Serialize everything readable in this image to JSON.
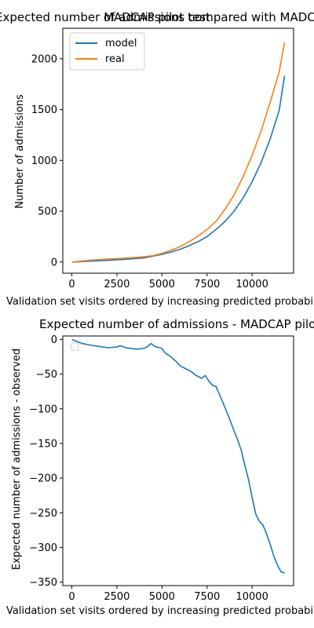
{
  "colors": {
    "model": "#1f77b4",
    "real": "#ff7f0e",
    "diff": "#1f77b4"
  },
  "chart_data": [
    {
      "type": "line",
      "title_overlap": "MADCAP pilot test",
      "title": "Expected number of admissions compared with MADCAP pilot test",
      "xlabel": "Validation set visits ordered by increasing predicted probability",
      "ylabel": "Number of admissions",
      "xlim": [
        -500,
        12300
      ],
      "ylim": [
        -110,
        2300
      ],
      "xticks": [
        0,
        2500,
        5000,
        7500,
        10000
      ],
      "yticks": [
        0,
        500,
        1000,
        1500,
        2000
      ],
      "legend": "upper-left",
      "series": [
        {
          "name": "model",
          "color": "#1f77b4",
          "x": [
            0,
            1000,
            2000,
            3000,
            4000,
            5000,
            5500,
            6000,
            6500,
            7000,
            7500,
            8000,
            8500,
            9000,
            9500,
            10000,
            10500,
            11000,
            11500,
            11800
          ],
          "y": [
            0,
            8,
            17,
            27,
            40,
            75,
            98,
            125,
            160,
            200,
            250,
            320,
            400,
            500,
            630,
            790,
            980,
            1210,
            1490,
            1830
          ]
        },
        {
          "name": "real",
          "color": "#ff7f0e",
          "x": [
            0,
            1000,
            2000,
            3000,
            4000,
            4500,
            5000,
            5500,
            6000,
            6500,
            7000,
            7500,
            8000,
            8500,
            9000,
            9500,
            10000,
            10500,
            11000,
            11500,
            11800
          ],
          "y": [
            0,
            18,
            28,
            38,
            52,
            62,
            85,
            115,
            150,
            200,
            255,
            320,
            400,
            520,
            660,
            840,
            1050,
            1290,
            1570,
            1870,
            2160
          ]
        }
      ]
    },
    {
      "type": "line",
      "title": "Expected number of admissions - MADCAP pilot test",
      "xlabel": "Validation set visits ordered by increasing predicted probability",
      "ylabel": "Expected number of admissions - observed",
      "xlim": [
        -500,
        12300
      ],
      "ylim": [
        -355,
        5
      ],
      "xticks": [
        0,
        2500,
        5000,
        7500,
        10000
      ],
      "yticks": [
        0,
        -50,
        -100,
        -150,
        -200,
        -250,
        -300,
        -350
      ],
      "legend": "upper-left",
      "series": [
        {
          "color": "#1f77b4",
          "x": [
            0,
            300,
            600,
            1000,
            1500,
            2000,
            2500,
            2700,
            3000,
            3300,
            3600,
            4000,
            4200,
            4400,
            4600,
            5000,
            5200,
            5500,
            5800,
            6000,
            6300,
            6600,
            6900,
            7200,
            7400,
            7600,
            7800,
            8000,
            8200,
            8400,
            8600,
            8800,
            9000,
            9200,
            9400,
            9600,
            9800,
            10000,
            10200,
            10400,
            10600,
            10800,
            11000,
            11200,
            11400,
            11600,
            11800
          ],
          "y": [
            0,
            -3,
            -6,
            -8,
            -10,
            -12,
            -11,
            -9,
            -12,
            -13,
            -14,
            -13,
            -10,
            -6,
            -10,
            -13,
            -20,
            -25,
            -32,
            -38,
            -42,
            -46,
            -52,
            -56,
            -52,
            -60,
            -66,
            -68,
            -80,
            -92,
            -105,
            -118,
            -132,
            -145,
            -160,
            -182,
            -202,
            -228,
            -252,
            -262,
            -268,
            -280,
            -295,
            -312,
            -325,
            -335,
            -337
          ]
        }
      ]
    }
  ]
}
